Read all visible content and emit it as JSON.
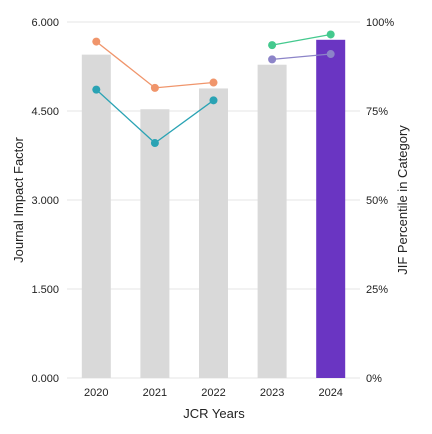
{
  "chart_data": {
    "type": "bar",
    "categories": [
      "2020",
      "2021",
      "2022",
      "2023",
      "2024"
    ],
    "bar_series": {
      "values": [
        5.45,
        4.53,
        4.88,
        5.28,
        5.7
      ],
      "colors": [
        "#d9d9d9",
        "#d9d9d9",
        "#d9d9d9",
        "#d9d9d9",
        "#6a35c2"
      ]
    },
    "line_series": [
      {
        "color": "#f0956b",
        "values": [
          94.5,
          81.5,
          83.0,
          null,
          null
        ]
      },
      {
        "color": "#2aa3b4",
        "values": [
          81.0,
          66.0,
          78.0,
          null,
          null
        ]
      },
      {
        "color": "#44c98e",
        "values": [
          null,
          null,
          null,
          93.5,
          96.5
        ]
      },
      {
        "color": "#8c84c8",
        "values": [
          null,
          null,
          null,
          89.5,
          91.0
        ]
      }
    ],
    "xlabel": "JCR Years",
    "ylabel": "Journal Impact Factor",
    "y2label": "JIF Percentile in Category",
    "ylim": [
      0,
      6
    ],
    "y2lim": [
      0,
      100
    ],
    "y_ticks": [
      "0.000",
      "1.500",
      "3.000",
      "4.500",
      "6.000"
    ],
    "y2_ticks": [
      "0%",
      "25%",
      "50%",
      "75%",
      "100%"
    ],
    "grid": true
  }
}
